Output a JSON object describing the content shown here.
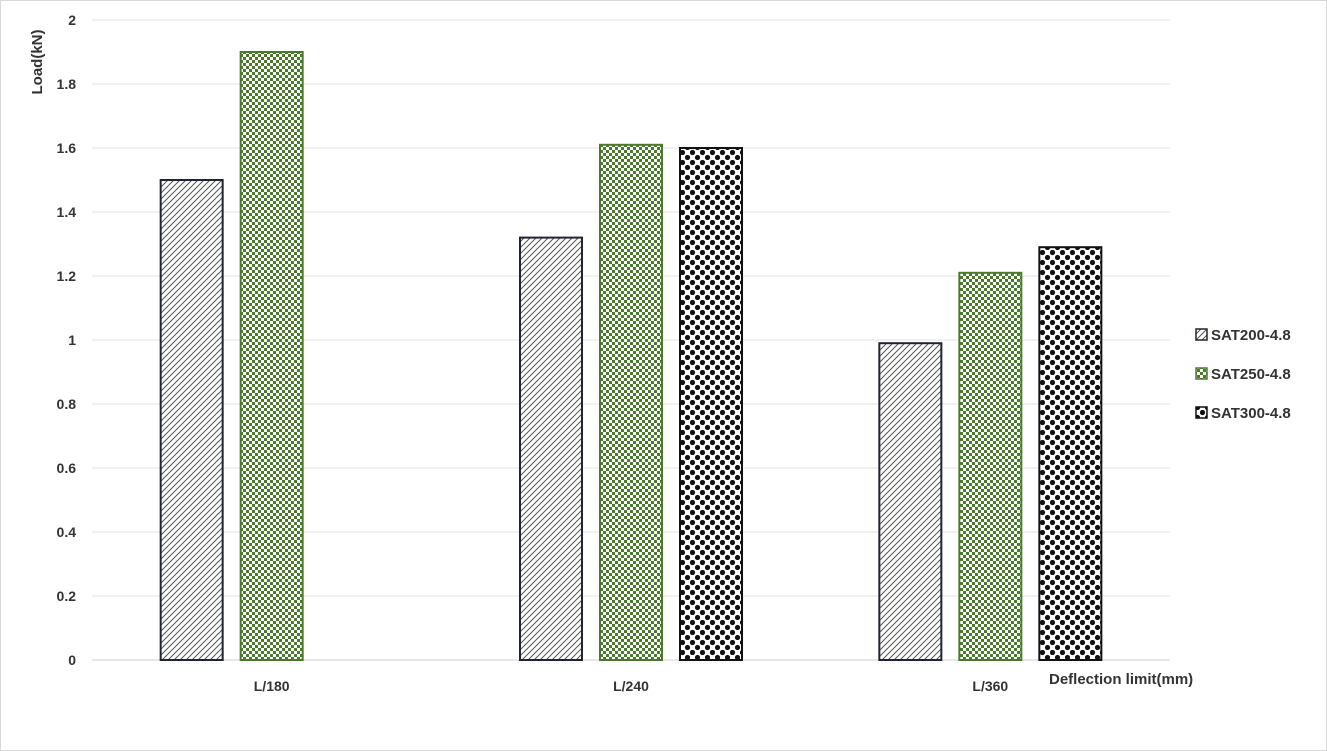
{
  "chart_data": {
    "type": "bar",
    "title": "",
    "xlabel": "Deflection limit(mm)",
    "ylabel": "Load(kN)",
    "categories": [
      "L/180",
      "L/240",
      "L/360"
    ],
    "series": [
      {
        "name": "SAT200-4.8",
        "values": [
          1.5,
          1.32,
          0.99
        ],
        "color": "#1f2533",
        "pattern": "diagonal-hatch"
      },
      {
        "name": "SAT250-4.8",
        "values": [
          1.9,
          1.61,
          1.21
        ],
        "color": "#4a7a2c",
        "pattern": "checker"
      },
      {
        "name": "SAT300-4.8",
        "values": [
          null,
          1.6,
          1.29
        ],
        "color": "#111111",
        "pattern": "dots"
      }
    ],
    "ylim": [
      0,
      2
    ],
    "yticks": [
      "0",
      "0.2",
      "0.4",
      "0.6",
      "0.8",
      "1",
      "1.2",
      "1.4",
      "1.6",
      "1.8",
      "2"
    ],
    "grid": true,
    "legend_position": "right"
  }
}
